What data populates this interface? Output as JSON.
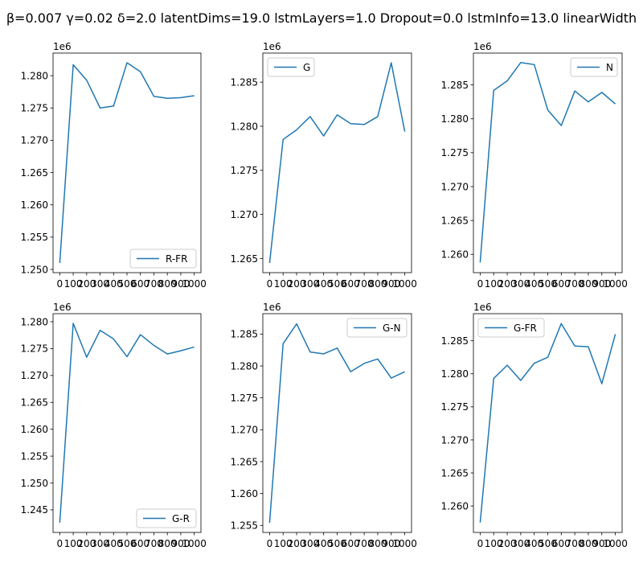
{
  "figure": {
    "suptitle": "β=0.007 γ=0.02 δ=2.0 latentDims=19.0 lstmLayers=1.0 Dropout=0.0 lstmInfo=13.0 linearWidth"
  },
  "colors": {
    "line": "#1f77b4",
    "axes": "#000000",
    "legend_edge": "#cccccc"
  },
  "chart_data": [
    {
      "type": "line",
      "series": [
        {
          "name": "R-FR",
          "values": [
            1.251,
            1.2817,
            1.2793,
            1.275,
            1.2753,
            1.282,
            1.2806,
            1.2768,
            1.2765,
            1.2766,
            1.2769
          ]
        }
      ],
      "x": [
        0,
        100,
        200,
        300,
        400,
        500,
        600,
        700,
        800,
        900,
        1000
      ],
      "xtick_labels": [
        "0",
        "100",
        "200",
        "300",
        "400",
        "500",
        "600",
        "700",
        "800",
        "900",
        "1000"
      ],
      "yticks": [
        1.25,
        1.255,
        1.26,
        1.265,
        1.27,
        1.275,
        1.28
      ],
      "ytick_labels": [
        "1.250",
        "1.255",
        "1.260",
        "1.265",
        "1.270",
        "1.275",
        "1.280"
      ],
      "ylim": [
        1.2495,
        1.2835
      ],
      "xlim": [
        -50,
        1050
      ],
      "offset_text": "1e6",
      "legend_loc": "lower-right"
    },
    {
      "type": "line",
      "series": [
        {
          "name": "G",
          "values": [
            1.2645,
            1.2785,
            1.2796,
            1.2811,
            1.2789,
            1.2813,
            1.2803,
            1.2802,
            1.2811,
            1.2872,
            1.2794
          ]
        }
      ],
      "x": [
        0,
        100,
        200,
        300,
        400,
        500,
        600,
        700,
        800,
        900,
        1000
      ],
      "xtick_labels": [
        "0",
        "100",
        "200",
        "300",
        "400",
        "500",
        "600",
        "700",
        "800",
        "900",
        "1000"
      ],
      "yticks": [
        1.265,
        1.27,
        1.275,
        1.28,
        1.285
      ],
      "ytick_labels": [
        "1.265",
        "1.270",
        "1.275",
        "1.280",
        "1.285"
      ],
      "ylim": [
        1.2634,
        1.2883
      ],
      "xlim": [
        -50,
        1050
      ],
      "offset_text": "1e6",
      "legend_loc": "upper-left"
    },
    {
      "type": "line",
      "series": [
        {
          "name": "N",
          "values": [
            1.2588,
            1.2842,
            1.2856,
            1.2883,
            1.288,
            1.2813,
            1.279,
            1.2841,
            1.2825,
            1.2839,
            1.2822
          ]
        }
      ],
      "x": [
        0,
        100,
        200,
        300,
        400,
        500,
        600,
        700,
        800,
        900,
        1000
      ],
      "xtick_labels": [
        "0",
        "100",
        "200",
        "300",
        "400",
        "500",
        "600",
        "700",
        "800",
        "900",
        "1000"
      ],
      "yticks": [
        1.26,
        1.265,
        1.27,
        1.275,
        1.28,
        1.285
      ],
      "ytick_labels": [
        "1.260",
        "1.265",
        "1.270",
        "1.275",
        "1.280",
        "1.285"
      ],
      "ylim": [
        1.2573,
        1.2897
      ],
      "xlim": [
        -50,
        1050
      ],
      "offset_text": "1e6",
      "legend_loc": "upper-right"
    },
    {
      "type": "line",
      "series": [
        {
          "name": "G-R",
          "values": [
            1.2426,
            1.2797,
            1.2734,
            1.2784,
            1.2768,
            1.2735,
            1.2776,
            1.2756,
            1.274,
            1.2746,
            1.2753
          ]
        }
      ],
      "x": [
        0,
        100,
        200,
        300,
        400,
        500,
        600,
        700,
        800,
        900,
        1000
      ],
      "xtick_labels": [
        "0",
        "100",
        "200",
        "300",
        "400",
        "500",
        "600",
        "700",
        "800",
        "900",
        "1000"
      ],
      "yticks": [
        1.245,
        1.25,
        1.255,
        1.26,
        1.265,
        1.27,
        1.275,
        1.28
      ],
      "ytick_labels": [
        "1.245",
        "1.250",
        "1.255",
        "1.260",
        "1.265",
        "1.270",
        "1.275",
        "1.280"
      ],
      "ylim": [
        1.2408,
        1.2815
      ],
      "xlim": [
        -50,
        1050
      ],
      "offset_text": "1e6",
      "legend_loc": "lower-right"
    },
    {
      "type": "line",
      "series": [
        {
          "name": "G-N",
          "values": [
            1.2554,
            1.2835,
            1.2866,
            1.2822,
            1.2819,
            1.2828,
            1.2791,
            1.2804,
            1.2811,
            1.2781,
            1.2791
          ]
        }
      ],
      "x": [
        0,
        100,
        200,
        300,
        400,
        500,
        600,
        700,
        800,
        900,
        1000
      ],
      "xtick_labels": [
        "0",
        "100",
        "200",
        "300",
        "400",
        "500",
        "600",
        "700",
        "800",
        "900",
        "1000"
      ],
      "yticks": [
        1.255,
        1.26,
        1.265,
        1.27,
        1.275,
        1.28,
        1.285
      ],
      "ytick_labels": [
        "1.255",
        "1.260",
        "1.265",
        "1.270",
        "1.275",
        "1.280",
        "1.285"
      ],
      "ylim": [
        1.2539,
        1.2882
      ],
      "xlim": [
        -50,
        1050
      ],
      "offset_text": "1e6",
      "legend_loc": "upper-right"
    },
    {
      "type": "line",
      "series": [
        {
          "name": "G-FR",
          "values": [
            1.2575,
            1.2793,
            1.2813,
            1.279,
            1.2816,
            1.2825,
            1.2876,
            1.2842,
            1.2841,
            1.2785,
            1.286
          ]
        }
      ],
      "x": [
        0,
        100,
        200,
        300,
        400,
        500,
        600,
        700,
        800,
        900,
        1000
      ],
      "xtick_labels": [
        "0",
        "100",
        "200",
        "300",
        "400",
        "500",
        "600",
        "700",
        "800",
        "900",
        "1000"
      ],
      "yticks": [
        1.26,
        1.265,
        1.27,
        1.275,
        1.28,
        1.285
      ],
      "ytick_labels": [
        "1.260",
        "1.265",
        "1.270",
        "1.275",
        "1.280",
        "1.285"
      ],
      "ylim": [
        1.256,
        1.2891
      ],
      "xlim": [
        -50,
        1050
      ],
      "offset_text": "1e6",
      "legend_loc": "upper-left"
    }
  ]
}
